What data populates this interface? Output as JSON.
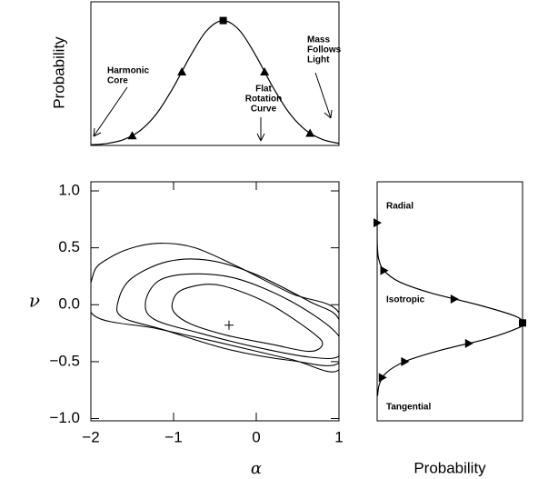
{
  "chart_data": [
    {
      "type": "line",
      "y_label": "Probability",
      "xlim": [
        -2,
        1
      ],
      "ylim": [
        0,
        1.15
      ],
      "x": [
        -2,
        -1.8,
        -1.6,
        -1.4,
        -1.2,
        -1.0,
        -0.8,
        -0.6,
        -0.4,
        -0.2,
        0,
        0.2,
        0.4,
        0.6,
        0.8,
        1.0
      ],
      "values": [
        0.005,
        0.016,
        0.048,
        0.121,
        0.259,
        0.468,
        0.713,
        0.919,
        1.0,
        0.919,
        0.713,
        0.468,
        0.259,
        0.121,
        0.048,
        0.016
      ],
      "markers": {
        "x": [
          -1.5,
          -0.9,
          0.1,
          0.65
        ],
        "y": [
          0.078,
          0.59,
          0.59,
          0.098
        ]
      },
      "peak": {
        "x": -0.4,
        "y": 1.0
      },
      "annotations": [
        {
          "lines": [
            "Harmonic",
            "Core"
          ]
        },
        {
          "lines": [
            "Flat",
            "Rotation",
            "Curve"
          ]
        },
        {
          "lines": [
            "Mass",
            "Follows",
            "Light"
          ]
        }
      ]
    },
    {
      "type": "contour",
      "x_label": "α",
      "y_label": "ν",
      "xlim": [
        -2,
        1
      ],
      "ylim": [
        -1.02,
        1.08
      ],
      "xticks": [
        {
          "value": -2,
          "label": "−2"
        },
        {
          "value": -1,
          "label": "−1"
        },
        0,
        1
      ],
      "yticks": [
        {
          "value": -1,
          "label": "−1.0"
        },
        {
          "value": -0.5,
          "label": "−0.5"
        },
        {
          "value": 0,
          "label": "0.0"
        },
        {
          "value": 0.5,
          "label": "0.5"
        },
        {
          "value": 1,
          "label": "1.0"
        }
      ],
      "contours": [
        {
          "x": [
            -1.01,
            -0.9,
            -0.57,
            -0.24,
            0.2,
            0.69,
            0.8,
            0.64,
            0.2,
            -0.35,
            -0.79,
            -0.99
          ],
          "y": [
            0.03,
            0.13,
            0.18,
            0.13,
            -0.01,
            -0.25,
            -0.35,
            -0.41,
            -0.35,
            -0.27,
            -0.17,
            -0.07
          ]
        },
        {
          "x": [
            -1.34,
            -1.18,
            -0.79,
            -0.24,
            0.42,
            0.97,
            1.0,
            0.64,
            -0.02,
            -0.68,
            -1.23
          ],
          "y": [
            0.02,
            0.21,
            0.27,
            0.23,
            0.03,
            -0.25,
            -0.45,
            -0.46,
            -0.37,
            -0.25,
            -0.13
          ]
        },
        {
          "x": [
            -1.67,
            -1.51,
            -1.07,
            -0.57,
            -0.02,
            0.64,
            1.0,
            1.0,
            0.42,
            -0.35,
            -1.12,
            -1.62
          ],
          "y": [
            0.03,
            0.23,
            0.38,
            0.39,
            0.27,
            0.03,
            -0.13,
            -0.51,
            -0.49,
            -0.39,
            -0.22,
            -0.11
          ]
        },
        {
          "x": [
            -1.97,
            -1.97,
            -1.78,
            -1.45,
            -1.12,
            -0.74,
            -0.24,
            0.42,
            1.0,
            1.0,
            0.42,
            -0.46,
            -1.2
          ],
          "y": [
            -0.09,
            0.27,
            0.41,
            0.51,
            0.54,
            0.5,
            0.34,
            0.1,
            -0.07,
            -0.57,
            -0.48,
            -0.33,
            -0.21
          ]
        }
      ],
      "best_fit": {
        "x": -0.33,
        "y": -0.18
      }
    },
    {
      "type": "line",
      "orientation": "horizontal",
      "x_label": "Probability",
      "xlim": [
        0,
        1
      ],
      "ylim": [
        -1.02,
        1.08
      ],
      "y": [
        0.8,
        0.7,
        0.6,
        0.5,
        0.4,
        0.3,
        0.2,
        0.1,
        0.0,
        -0.1,
        -0.16,
        -0.2,
        -0.3,
        -0.4,
        -0.5,
        -0.6,
        -0.7,
        -0.8
      ],
      "values": [
        0,
        0,
        0,
        0.002,
        0.011,
        0.047,
        0.154,
        0.378,
        0.692,
        0.949,
        1,
        0.977,
        0.754,
        0.436,
        0.189,
        0.061,
        0.015,
        0.003
      ],
      "markers": {
        "y": [
          0.72,
          0.3,
          0.05,
          -0.34,
          -0.5,
          -0.64
        ],
        "x": [
          0,
          0.047,
          0.53,
          0.63,
          0.19,
          0.036
        ]
      },
      "peak": {
        "y": -0.16,
        "x": 1
      },
      "annotations": [
        {
          "lines": [
            "Radial"
          ]
        },
        {
          "lines": [
            "Isotropic"
          ]
        },
        {
          "lines": [
            "Tangential"
          ]
        }
      ]
    }
  ]
}
